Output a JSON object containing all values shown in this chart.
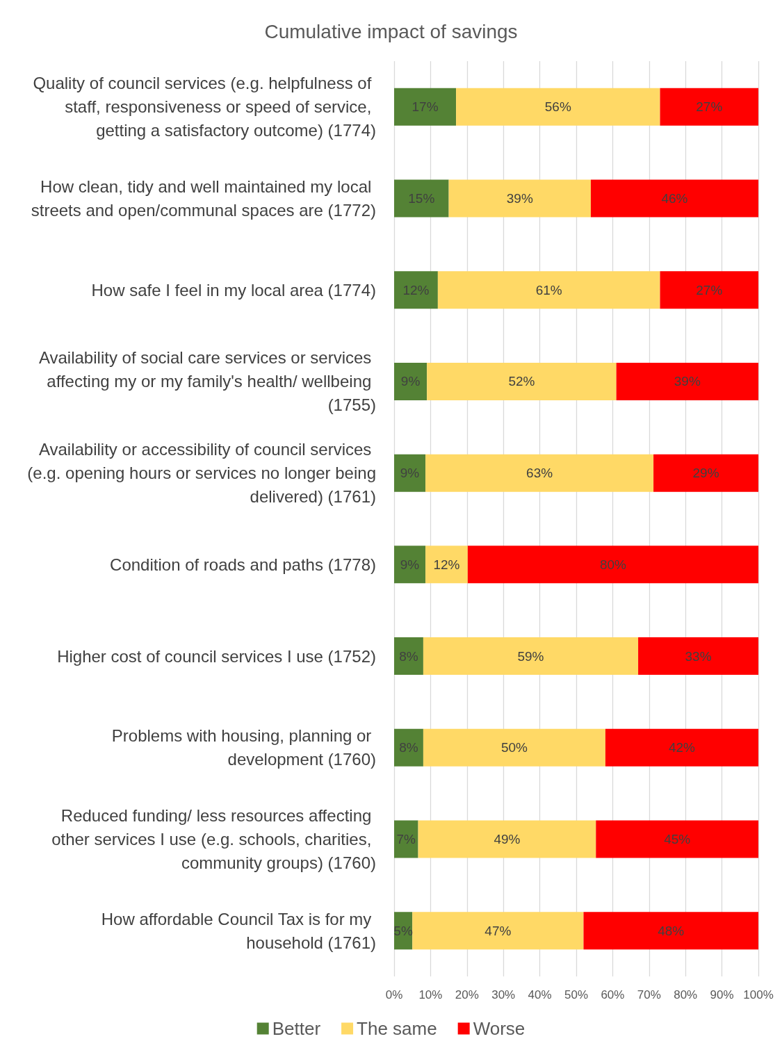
{
  "chart_data": {
    "type": "bar",
    "title": "Cumulative impact of savings",
    "orientation": "horizontal",
    "stacked": true,
    "categories": [
      "Quality of council services (e.g. helpfulness of staff, responsiveness or speed of service, getting a satisfactory outcome) (1774)",
      "How clean, tidy and well maintained my local streets and open/communal spaces are (1772)",
      "How safe I feel in my local area (1774)",
      "Availability of social care services or services affecting my or my family's health/ wellbeing (1755)",
      "Availability or accessibility of council services (e.g. opening hours or services no longer being delivered) (1761)",
      "Condition of roads and paths (1778)",
      "Higher cost of council services I use (1752)",
      "Problems with housing, planning or development (1760)",
      "Reduced funding/ less resources affecting other services I use (e.g. schools, charities, community groups) (1760)",
      "How affordable Council Tax is for my household (1761)"
    ],
    "series": [
      {
        "name": "Better",
        "color": "#548235",
        "values": [
          17,
          15,
          12,
          9,
          8.6,
          8.6,
          8,
          8,
          6.6,
          5
        ],
        "value_labels": [
          "17%",
          "15%",
          "12%",
          "9%",
          "9%",
          "9%",
          "8%",
          "8%",
          "7%",
          "5%"
        ]
      },
      {
        "name": "The same",
        "color": "#ffd966",
        "values": [
          56,
          39,
          61,
          52,
          62.6,
          11.6,
          59,
          50,
          48.8,
          47
        ],
        "value_labels": [
          "56%",
          "39%",
          "61%",
          "52%",
          "63%",
          "12%",
          "59%",
          "50%",
          "49%",
          "47%"
        ]
      },
      {
        "name": "Worse",
        "color": "#ff0000",
        "values": [
          27,
          46,
          27,
          39,
          28.8,
          79.8,
          33,
          42,
          44.6,
          48
        ],
        "value_labels": [
          "27%",
          "46%",
          "27%",
          "39%",
          "29%",
          "80%",
          "33%",
          "42%",
          "45%",
          "48%"
        ]
      }
    ],
    "xlim": [
      0,
      100
    ],
    "xticks": [
      {
        "value": 0,
        "label": "0%"
      },
      {
        "value": 10,
        "label": "10%"
      },
      {
        "value": 20,
        "label": "20%"
      },
      {
        "value": 30,
        "label": "30%"
      },
      {
        "value": 40,
        "label": "40%"
      },
      {
        "value": 50,
        "label": "50%"
      },
      {
        "value": 60,
        "label": "60%"
      },
      {
        "value": 70,
        "label": "70%"
      },
      {
        "value": 80,
        "label": "80%"
      },
      {
        "value": 90,
        "label": "90%"
      },
      {
        "value": 100,
        "label": "100%"
      }
    ],
    "grid": "x",
    "legend": "bottom"
  }
}
